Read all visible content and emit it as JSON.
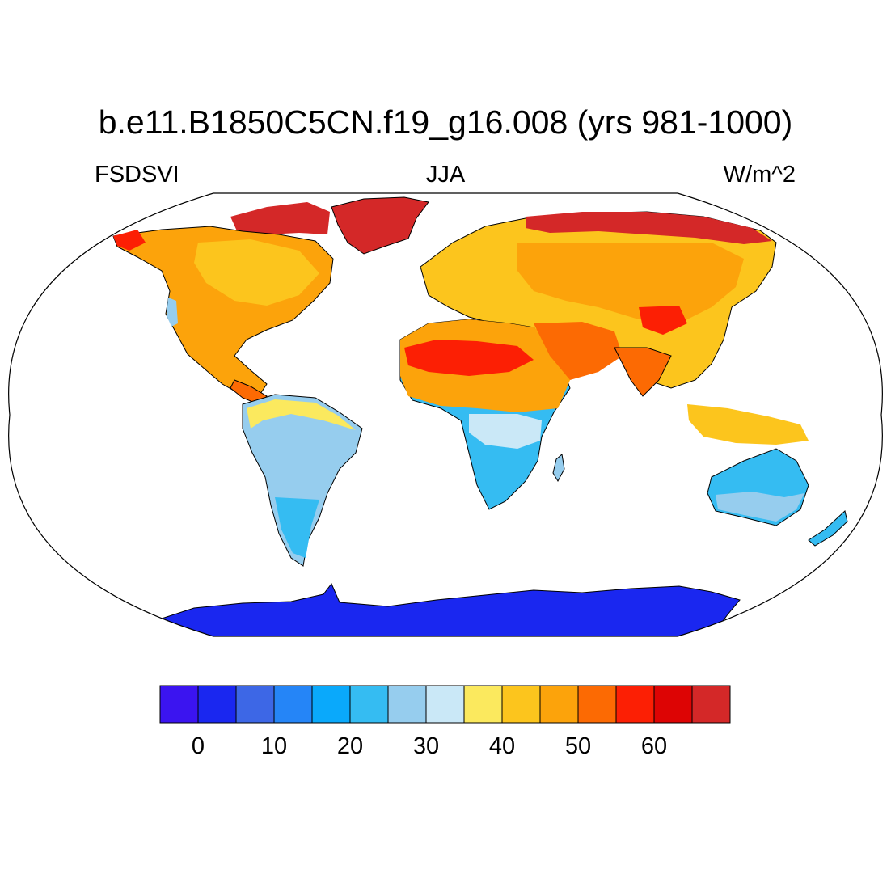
{
  "title": "b.e11.B1850C5CN.f19_g16.008 (yrs 981-1000)",
  "left_label": "FSDSVI",
  "center_label": "JJA",
  "right_label": "W/m^2",
  "colorbar": {
    "colors": [
      "#3b14f0",
      "#1a27f0",
      "#3d67e6",
      "#2585f7",
      "#0aa9fb",
      "#35bcf2",
      "#96cdee",
      "#cae8f7",
      "#fbe95e",
      "#fcc51d",
      "#fca30b",
      "#fc6a03",
      "#fc1f04",
      "#dd0404",
      "#d42828"
    ],
    "labels": [
      "0",
      "10",
      "20",
      "30",
      "40",
      "50",
      "60"
    ]
  },
  "regions": [
    {
      "name": "Antarctica",
      "value": 0,
      "color": "#1a27f0"
    },
    {
      "name": "Greenland",
      "value": 65,
      "color": "#d42828"
    },
    {
      "name": "North America",
      "value": 48,
      "color": "#fca30b"
    },
    {
      "name": "Sahara",
      "value": 58,
      "color": "#fc1f04"
    },
    {
      "name": "South America",
      "value": 25,
      "color": "#96cdee"
    },
    {
      "name": "Southern Africa",
      "value": 25,
      "color": "#35bcf2"
    },
    {
      "name": "Australia",
      "value": 25,
      "color": "#35bcf2"
    },
    {
      "name": "Eurasia",
      "value": 45,
      "color": "#fcc51d"
    }
  ]
}
